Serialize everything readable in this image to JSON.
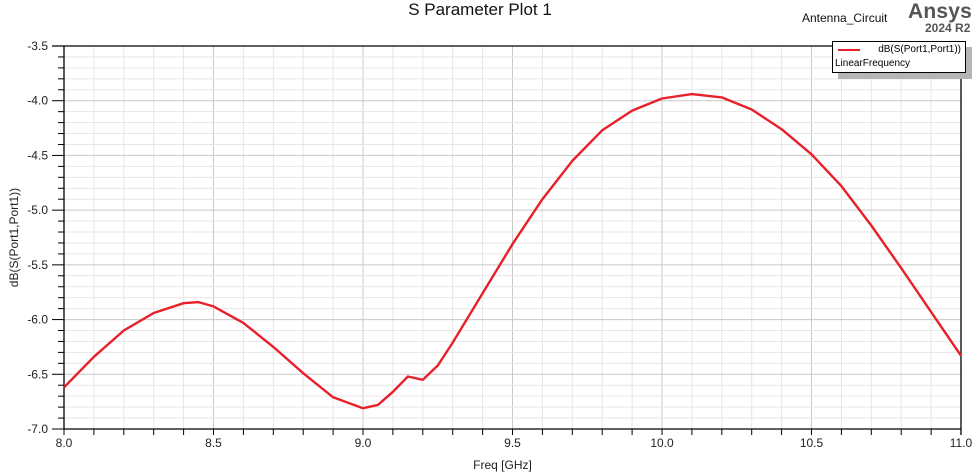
{
  "header": {
    "title": "S Parameter Plot 1",
    "design_name": "Antenna_Circuit",
    "brand": "Ansys",
    "version": "2024 R2"
  },
  "legend": {
    "entries": [
      {
        "name": "dB(S(Port1,Port1))",
        "sweep": "LinearFrequency",
        "color": "#e8202a"
      }
    ]
  },
  "axes": {
    "xlabel": "Freq [GHz]",
    "ylabel": "dB(S(Port1,Port1))",
    "xticks": [
      "8.0",
      "8.5",
      "9.0",
      "9.5",
      "10.0",
      "10.5",
      "11.0"
    ],
    "yticks": [
      "-3.5",
      "-4.0",
      "-4.5",
      "-5.0",
      "-5.5",
      "-6.0",
      "-6.5",
      "-7.0"
    ]
  },
  "chart_data": {
    "type": "line",
    "title": "S Parameter Plot 1",
    "xlabel": "Freq [GHz]",
    "ylabel": "dB(S(Port1,Port1))",
    "xlim": [
      8.0,
      11.0
    ],
    "ylim": [
      -7.0,
      -3.5
    ],
    "grid": true,
    "legend_position": "top-right",
    "series": [
      {
        "name": "dB(S(Port1,Port1))",
        "color": "#e8202a",
        "x": [
          8.0,
          8.1,
          8.2,
          8.3,
          8.4,
          8.45,
          8.5,
          8.6,
          8.7,
          8.8,
          8.9,
          9.0,
          9.05,
          9.1,
          9.15,
          9.2,
          9.25,
          9.3,
          9.4,
          9.5,
          9.6,
          9.7,
          9.8,
          9.9,
          10.0,
          10.1,
          10.2,
          10.3,
          10.4,
          10.5,
          10.6,
          10.7,
          10.8,
          10.9,
          11.0
        ],
        "y": [
          -6.62,
          -6.34,
          -6.1,
          -5.94,
          -5.85,
          -5.84,
          -5.88,
          -6.03,
          -6.25,
          -6.49,
          -6.71,
          -6.81,
          -6.78,
          -6.66,
          -6.52,
          -6.55,
          -6.42,
          -6.21,
          -5.76,
          -5.31,
          -4.9,
          -4.55,
          -4.27,
          -4.09,
          -3.98,
          -3.94,
          -3.97,
          -4.08,
          -4.26,
          -4.49,
          -4.78,
          -5.14,
          -5.53,
          -5.93,
          -6.33
        ]
      }
    ]
  }
}
